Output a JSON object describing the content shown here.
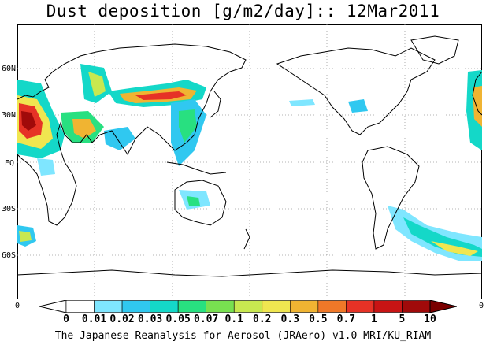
{
  "title": "Dust deposition [g/m2/day]:: 12Mar2011",
  "footer": "The Japanese Reanalysis for Aerosol (JRAero) v1.0 MRI/KU_RIAM",
  "map": {
    "lat_labels": [
      "60N",
      "30N",
      "EQ",
      "30S",
      "60S"
    ],
    "edge_labels": {
      "left": "0",
      "right": "0"
    },
    "grid": true,
    "land_outline_color": "#000000",
    "background": "#ffffff"
  },
  "colorbar": {
    "labels": [
      "0",
      "0.01",
      "0.02",
      "0.03",
      "0.05",
      "0.07",
      "0.1",
      "0.2",
      "0.3",
      "0.5",
      "0.7",
      "1",
      "5",
      "10"
    ],
    "colors": [
      "#ffffff",
      "#ffffff",
      "#7fe6ff",
      "#30c8f0",
      "#14d8c8",
      "#28e080",
      "#78e050",
      "#c8e850",
      "#f0e650",
      "#f0b432",
      "#f07828",
      "#e63226",
      "#c81414",
      "#a00a0a",
      "#7a0000"
    ]
  }
}
